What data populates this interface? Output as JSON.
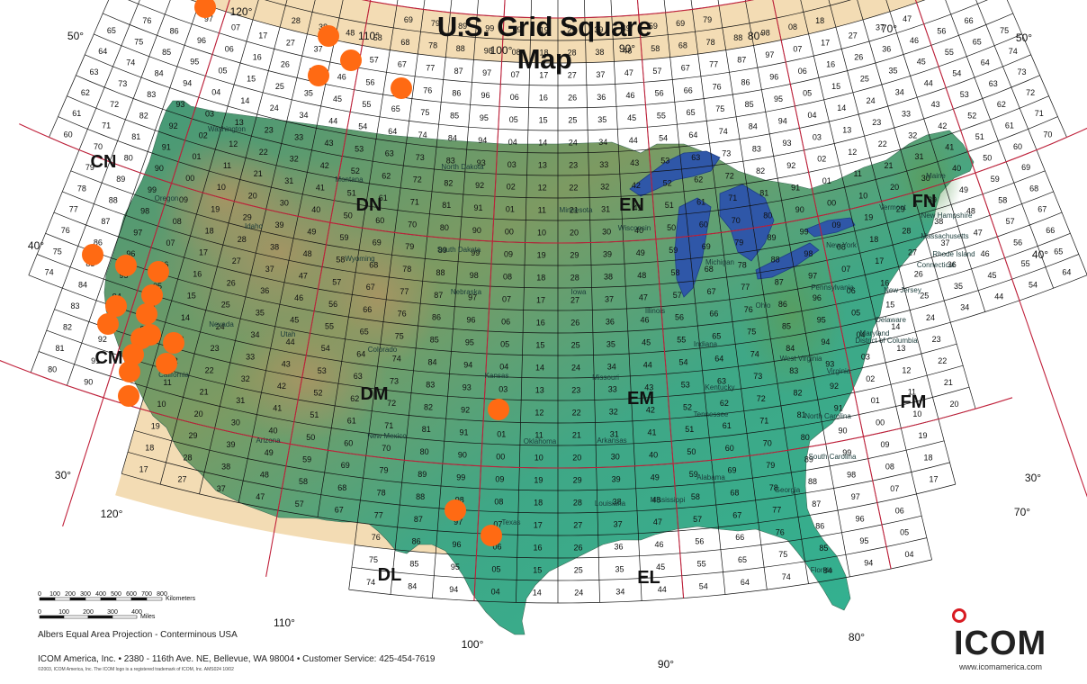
{
  "title": "U.S. Grid Square Map",
  "colors": {
    "land_high": "#6a9a62",
    "land_low": "#4faa8c",
    "canada_band": "#f3dcb4",
    "mexico_band": "#f3dcb4",
    "water": "#ffffff",
    "lakes": "#2f57a8",
    "field_lines": "#c0203a",
    "grid_lines": "#111111",
    "markers": "#ff6a13",
    "logo_red": "#d81b22"
  },
  "fields": [
    {
      "label": "CN"
    },
    {
      "label": "DN"
    },
    {
      "label": "EN"
    },
    {
      "label": "FN"
    },
    {
      "label": "CM"
    },
    {
      "label": "DM"
    },
    {
      "label": "EM"
    },
    {
      "label": "FM"
    },
    {
      "label": "DL"
    },
    {
      "label": "EL"
    }
  ],
  "latitude_labels": {
    "lat50_left": "50°",
    "lat50_right": "50°",
    "lat40_left": "40°",
    "lat40_right": "40°",
    "lat30_left": "30°",
    "lat30_right": "30°"
  },
  "longitude_labels": {
    "top_120": "120°",
    "top_110": "110°",
    "top_100": "100°",
    "top_90": "90°",
    "top_80": "80°",
    "top_70": "70°",
    "bottom_120": "120°",
    "bottom_110": "110°",
    "bottom_100": "100°",
    "bottom_90": "90°",
    "bottom_80": "80°",
    "bottom_70": "70°"
  },
  "scale": {
    "km_ticks": [
      "0",
      "100",
      "200",
      "300",
      "400",
      "500",
      "600",
      "700",
      "800"
    ],
    "km_unit": "Kilometers",
    "mile_ticks": [
      "0",
      "100",
      "200",
      "300",
      "400"
    ],
    "mile_unit": "Miles"
  },
  "states": {
    "washington": "Washington",
    "oregon": "Oregon",
    "idaho": "Idaho",
    "montana": "Montana",
    "wyoming": "Wyoming",
    "nevada": "Nevada",
    "utah": "Utah",
    "colorado": "Colorado",
    "arizona": "Arizona",
    "new_mexico": "New Mexico",
    "california": "California",
    "north_dakota": "North Dakota",
    "south_dakota": "South Dakota",
    "nebraska": "Nebraska",
    "kansas": "Kansas",
    "oklahoma": "Oklahoma",
    "texas": "Texas",
    "minnesota": "Minnesota",
    "iowa": "Iowa",
    "missouri": "Missouri",
    "arkansas": "Arkansas",
    "louisiana": "Louisiana",
    "wisconsin": "Wisconsin",
    "illinois": "Illinois",
    "michigan": "Michigan",
    "indiana": "Indiana",
    "ohio": "Ohio",
    "kentucky": "Kentucky",
    "tennessee": "Tennessee",
    "mississippi": "Mississippi",
    "alabama": "Alabama",
    "georgia": "Georgia",
    "florida": "Florida",
    "south_carolina": "South Carolina",
    "north_carolina": "North Carolina",
    "virginia": "Virginia",
    "west_virginia": "West Virginia",
    "pennsylvania": "Pennsylvania",
    "new_york": "New York",
    "maine": "Maine",
    "vermont": "Vermont",
    "new_hampshire": "New Hampshire",
    "massachusetts": "Massachusetts",
    "rhode_island": "Rhode Island",
    "connecticut": "Connecticut",
    "new_jersey": "New Jersey",
    "delaware": "Delaware",
    "maryland": "Maryland",
    "dc": "District of Columbia"
  },
  "projection": "Albers Equal Area Projection - Conterminous USA",
  "footer_address": "ICOM America, Inc.  •  2380 - 116th Ave. NE, Bellevue, WA  98004  •  Customer Service: 425-454-7619",
  "copyright": "©2003, ICOM America, Inc. The ICOM logo is a registered trademark of ICOM, Inc.   AMS024  10/02",
  "logo": {
    "text": "ICOM",
    "url": "www.icomamerica.com"
  }
}
